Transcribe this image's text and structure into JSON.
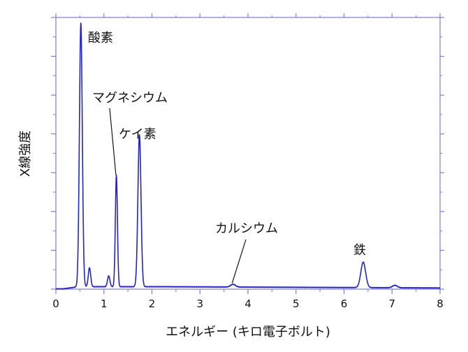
{
  "chart_data": {
    "type": "line",
    "title": "",
    "xlabel": "エネルギー (キロ電子ボルト)",
    "ylabel": "X線強度",
    "xlim": [
      0,
      8
    ],
    "ylim": [
      0,
      100
    ],
    "xticks": [
      "0",
      "1",
      "2",
      "3",
      "4",
      "5",
      "6",
      "7",
      "8"
    ],
    "y_tick_labels_shown": false,
    "grid": false,
    "legend": "none",
    "line_color": "#2323c8",
    "frame_color": "#7d7dd6",
    "series": [
      {
        "values_approx": [
          {
            "x": 0.0,
            "y": 0.1
          },
          {
            "x": 0.3,
            "y": 0.8
          },
          {
            "x": 0.52,
            "y": 97.5
          },
          {
            "x": 0.7,
            "y": 7.5
          },
          {
            "x": 0.9,
            "y": 1.3
          },
          {
            "x": 1.1,
            "y": 4.5
          },
          {
            "x": 1.26,
            "y": 41.5
          },
          {
            "x": 1.45,
            "y": 0.9
          },
          {
            "x": 1.74,
            "y": 56.5
          },
          {
            "x": 2.2,
            "y": 0.6
          },
          {
            "x": 3.0,
            "y": 0.5
          },
          {
            "x": 3.69,
            "y": 1.4
          },
          {
            "x": 4.5,
            "y": 0.4
          },
          {
            "x": 5.5,
            "y": 0.4
          },
          {
            "x": 6.4,
            "y": 9.8
          },
          {
            "x": 7.06,
            "y": 1.3
          },
          {
            "x": 8.0,
            "y": 0.3
          }
        ]
      }
    ],
    "annotations": [
      {
        "text": "酸素",
        "x": 0.52
      },
      {
        "text": "マグネシウム",
        "x": 1.26
      },
      {
        "text": "ケイ素",
        "x": 1.74
      },
      {
        "text": "カルシウム",
        "x": 3.69
      },
      {
        "text": "鉄",
        "x": 6.4
      }
    ]
  }
}
